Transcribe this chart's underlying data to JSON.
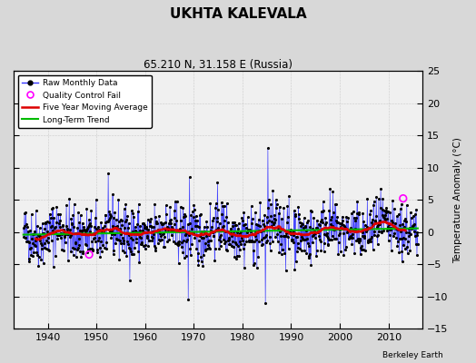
{
  "title": "UKHTA KALEVALA",
  "subtitle": "65.210 N, 31.158 E (Russia)",
  "ylabel": "Temperature Anomaly (°C)",
  "credit": "Berkeley Earth",
  "xlim": [
    1933,
    2017
  ],
  "ylim": [
    -15,
    25
  ],
  "yticks": [
    -15,
    -10,
    -5,
    0,
    5,
    10,
    15,
    20,
    25
  ],
  "xticks": [
    1940,
    1950,
    1960,
    1970,
    1980,
    1990,
    2000,
    2010
  ],
  "bg_color": "#d8d8d8",
  "plot_bg_color": "#f0f0f0",
  "raw_color": "#3333ff",
  "ma_color": "#dd0000",
  "trend_color": "#00bb00",
  "qc_color": "#ff00ff",
  "seed": 42,
  "figwidth": 5.24,
  "figheight": 4.0,
  "dpi": 100
}
